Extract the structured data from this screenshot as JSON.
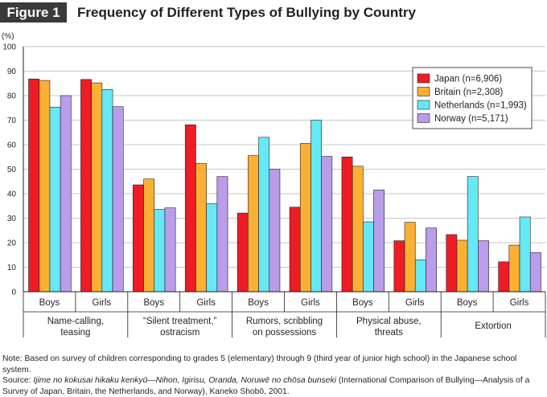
{
  "figure_label": "Figure 1",
  "title": "Frequency of Different Types of Bullying by Country",
  "chart_data": {
    "type": "bar",
    "title": "Frequency of Different Types of Bullying by Country",
    "ylabel": "(%)",
    "xlabel": "",
    "ylim": [
      0,
      100
    ],
    "yticks": [
      0,
      10,
      20,
      30,
      40,
      50,
      60,
      70,
      80,
      90,
      100
    ],
    "grid": true,
    "legend_position": "top-right",
    "groups": [
      {
        "label": "Name-calling, teasing",
        "label_lines": [
          "Name-calling,",
          "teasing"
        ]
      },
      {
        "label": "“Silent treatment,” ostracism",
        "label_lines": [
          "“Silent treatment,”",
          "ostracism"
        ]
      },
      {
        "label": "Rumors, scribbling on possessions",
        "label_lines": [
          "Rumors, scribbling",
          "on possessions"
        ]
      },
      {
        "label": "Physical abuse, threats",
        "label_lines": [
          "Physical abuse,",
          "threats"
        ]
      },
      {
        "label": "Extortion",
        "label_lines": [
          "Extortion"
        ]
      }
    ],
    "categories": [
      "Boys",
      "Girls",
      "Boys",
      "Girls",
      "Boys",
      "Girls",
      "Boys",
      "Girls",
      "Boys",
      "Girls"
    ],
    "series": [
      {
        "name": "Japan (n=6,906)",
        "color": "#ee1c25",
        "values": [
          86.8,
          86.6,
          43.6,
          68.1,
          32.1,
          34.5,
          55.0,
          20.8,
          23.3,
          12.2
        ]
      },
      {
        "name": "Britain (n=2,308)",
        "color": "#fbb034",
        "values": [
          86.2,
          85.2,
          46.0,
          52.3,
          55.5,
          60.5,
          51.2,
          28.3,
          21.0,
          19.0
        ]
      },
      {
        "name": "Netherlands (n=1,993)",
        "color": "#66e8f5",
        "values": [
          75.3,
          82.5,
          33.6,
          35.9,
          63.0,
          70.0,
          28.5,
          13.0,
          47.0,
          30.5
        ]
      },
      {
        "name": "Norway (n=5,171)",
        "color": "#b99cea",
        "values": [
          80.0,
          75.5,
          34.2,
          47.0,
          50.0,
          55.2,
          41.5,
          26.0,
          20.8,
          16.0
        ]
      }
    ]
  },
  "notes": {
    "note": "Note: Based on survey of children corresponding to grades 5 (elementary) through 9 (third year of junior high school) in the Japanese school system.",
    "source_prefix": "Source: ",
    "source_title": "Ijime no kokusai hikaku kenkyū—Nihon, Igirisu, Oranda, Noruwē no chōsa bunseki",
    "source_rest": " (International Comparison of Bullying—Analysis of a Survey of Japan, Britain, the Netherlands, and Norway), Kaneko Shobō, 2001."
  }
}
